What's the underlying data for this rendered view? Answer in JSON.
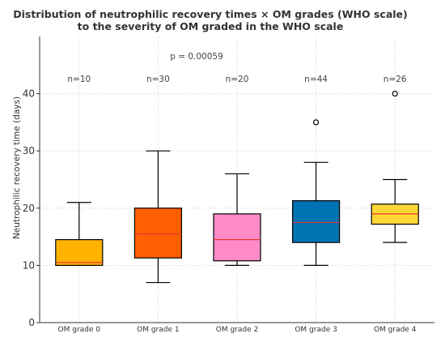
{
  "chart_data": {
    "type": "box",
    "title_lines": [
      "Distribution of neutrophilic recovery times × OM grades (WHO scale)",
      "to the severity of OM graded in the WHO scale"
    ],
    "xlabel": "",
    "ylabel": "Neutrophilic recovery time (days)",
    "ylim": [
      0,
      50
    ],
    "yticks": [
      0,
      10,
      20,
      30,
      40
    ],
    "grid": true,
    "annotation": "p = 0.00059",
    "categories": [
      "OM grade 0",
      "OM grade 1",
      "OM grade 2",
      "OM grade 3",
      "OM grade 4"
    ],
    "boxes": [
      {
        "category": "OM grade 0",
        "n_label": "n=10",
        "min": 10,
        "q1": 10,
        "median": 10.5,
        "q3": 14.5,
        "max": 21,
        "outliers": [],
        "color": "#FFB300"
      },
      {
        "category": "OM grade 1",
        "n_label": "n=30",
        "min": 7,
        "q1": 11.3,
        "median": 15.5,
        "q3": 20,
        "max": 30,
        "outliers": [],
        "color": "#FF5F00"
      },
      {
        "category": "OM grade 2",
        "n_label": "n=20",
        "min": 10,
        "q1": 10.8,
        "median": 14.5,
        "q3": 19,
        "max": 26,
        "outliers": [],
        "color": "#FF8AC8"
      },
      {
        "category": "OM grade 3",
        "n_label": "n=44",
        "min": 10,
        "q1": 14,
        "median": 17.5,
        "q3": 21.3,
        "max": 28,
        "outliers": [
          35
        ],
        "color": "#0072B2"
      },
      {
        "category": "OM grade 4",
        "n_label": "n=26",
        "min": 14,
        "q1": 17.2,
        "median": 19,
        "q3": 20.7,
        "max": 25,
        "outliers": [
          40
        ],
        "color": "#FDD835"
      }
    ],
    "median_color": "#E53935"
  }
}
